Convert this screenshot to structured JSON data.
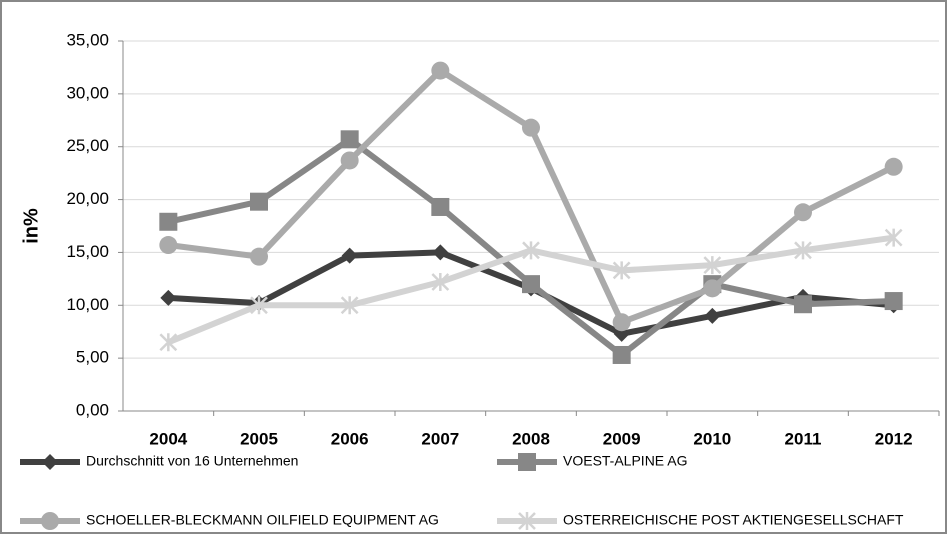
{
  "chart_data": {
    "type": "line",
    "y_label": "in%",
    "categories": [
      "2004",
      "2005",
      "2006",
      "2007",
      "2008",
      "2009",
      "2010",
      "2011",
      "2012"
    ],
    "series": [
      {
        "name": "Durchschnitt von 16 Unternehmen",
        "color": "#404040",
        "marker": "diamond",
        "values": [
          10.7,
          10.2,
          14.7,
          15.0,
          11.6,
          7.3,
          9.0,
          10.8,
          10.0
        ]
      },
      {
        "name": "VOEST-ALPINE AG",
        "color": "#878787",
        "marker": "square",
        "values": [
          17.9,
          19.8,
          25.7,
          19.3,
          12.0,
          5.3,
          12.0,
          10.1,
          10.4
        ]
      },
      {
        "name": "SCHOELLER-BLECKMANN OILFIELD EQUIPMENT AG",
        "color": "#aaaaaa",
        "marker": "circle",
        "values": [
          15.7,
          14.6,
          23.7,
          32.2,
          26.8,
          8.4,
          11.6,
          18.8,
          23.1
        ]
      },
      {
        "name": "OSTERREICHISCHE POST AKTIENGESELLSCHAFT",
        "color": "#d3d3d3",
        "marker": "asterisk",
        "values": [
          6.5,
          10.0,
          10.0,
          12.2,
          15.2,
          13.3,
          13.8,
          15.2,
          16.4
        ]
      }
    ],
    "ylim": [
      0,
      35
    ],
    "yticks": [
      {
        "value": 0,
        "label": "0,00"
      },
      {
        "value": 5,
        "label": "5,00"
      },
      {
        "value": 10,
        "label": "10,00"
      },
      {
        "value": 15,
        "label": "15,00"
      },
      {
        "value": 20,
        "label": "20,00"
      },
      {
        "value": 25,
        "label": "25,00"
      },
      {
        "value": 30,
        "label": "30,00"
      },
      {
        "value": 35,
        "label": "35,00"
      }
    ],
    "grid": true,
    "legend": "bottom"
  }
}
